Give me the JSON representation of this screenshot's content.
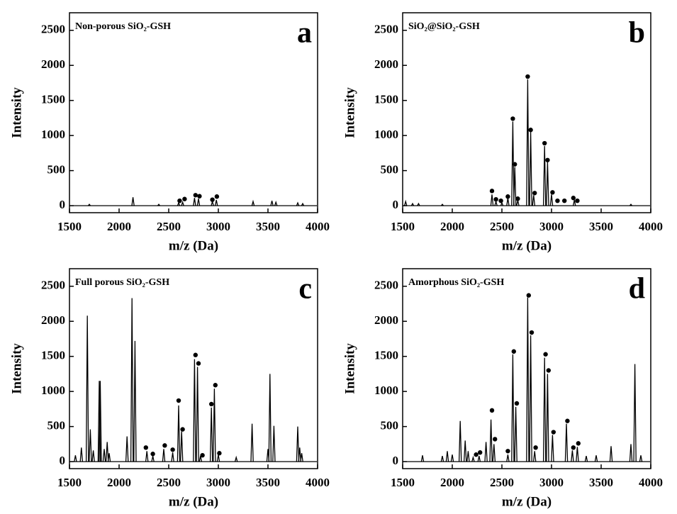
{
  "chart_data": [
    {
      "type": "spectrum",
      "panel_label": "a",
      "title": "Non-porous SiO₂-GSH",
      "x_label": "m/z (Da)",
      "y_label": "Intensity",
      "color": "#000000",
      "xlim": [
        1500,
        4000
      ],
      "ylim": [
        -100,
        2750
      ],
      "xticks": [
        1500,
        2000,
        2500,
        3000,
        3500,
        4000
      ],
      "yticks": [
        0,
        500,
        1000,
        1500,
        2000,
        2500
      ],
      "x": [
        1700,
        2140,
        2400,
        2600,
        2640,
        2760,
        2800,
        2940,
        2980,
        3350,
        3540,
        3580,
        3800,
        3850
      ],
      "values": [
        20,
        120,
        20,
        40,
        50,
        110,
        100,
        60,
        80,
        60,
        70,
        50,
        40,
        30
      ],
      "markers": {
        "x": [
          2610,
          2660,
          2770,
          2810,
          2940,
          2985
        ],
        "values": [
          70,
          95,
          150,
          135,
          85,
          130
        ]
      }
    },
    {
      "type": "spectrum",
      "panel_label": "b",
      "title": "SiO₂@SiO₂-GSH",
      "x_label": "m/z (Da)",
      "y_label": "Intensity",
      "color": "#000000",
      "xlim": [
        1500,
        4000
      ],
      "ylim": [
        -100,
        2750
      ],
      "xticks": [
        1500,
        2000,
        2500,
        3000,
        3500,
        4000
      ],
      "yticks": [
        0,
        500,
        1000,
        1500,
        2000,
        2500
      ],
      "x": [
        1530,
        1600,
        1660,
        1900,
        2400,
        2440,
        2500,
        2560,
        2610,
        2630,
        2660,
        2760,
        2790,
        2820,
        2930,
        2960,
        3000,
        3230,
        3800
      ],
      "values": [
        60,
        30,
        30,
        20,
        160,
        60,
        40,
        110,
        1200,
        550,
        80,
        1800,
        1050,
        150,
        850,
        620,
        160,
        80,
        20
      ],
      "markers": {
        "x": [
          2400,
          2440,
          2490,
          2560,
          2610,
          2630,
          2660,
          2760,
          2790,
          2830,
          2930,
          2960,
          3010,
          3060,
          3130,
          3220,
          3260
        ],
        "values": [
          210,
          90,
          70,
          130,
          1240,
          590,
          100,
          1840,
          1080,
          180,
          890,
          650,
          190,
          70,
          70,
          110,
          70
        ]
      }
    },
    {
      "type": "spectrum",
      "panel_label": "c",
      "title": "Full porous SiO₂-GSH",
      "x_label": "m/z (Da)",
      "y_label": "Intensity",
      "color": "#000000",
      "xlim": [
        1500,
        4000
      ],
      "ylim": [
        -100,
        2750
      ],
      "xticks": [
        1500,
        2000,
        2500,
        3000,
        3500,
        4000
      ],
      "yticks": [
        0,
        500,
        1000,
        1500,
        2000,
        2500
      ],
      "x": [
        1560,
        1620,
        1680,
        1710,
        1740,
        1800,
        1810,
        1850,
        1880,
        1900,
        2080,
        2130,
        2160,
        2280,
        2340,
        2450,
        2540,
        2600,
        2630,
        2760,
        2790,
        2820,
        2930,
        2960,
        3000,
        3180,
        3340,
        3500,
        3520,
        3560,
        3800,
        3820,
        3840
      ],
      "values": [
        90,
        200,
        2080,
        460,
        160,
        1150,
        1150,
        180,
        280,
        120,
        360,
        2330,
        1720,
        150,
        80,
        180,
        130,
        800,
        430,
        1460,
        1350,
        80,
        770,
        1040,
        100,
        60,
        540,
        180,
        1250,
        510,
        500,
        200,
        120
      ],
      "markers": {
        "x": [
          2270,
          2340,
          2460,
          2540,
          2600,
          2640,
          2770,
          2800,
          2840,
          2930,
          2970,
          3010
        ],
        "values": [
          200,
          110,
          230,
          170,
          870,
          460,
          1520,
          1400,
          90,
          820,
          1090,
          120
        ]
      }
    },
    {
      "type": "spectrum",
      "panel_label": "d",
      "title": "Amorphous SiO₂-GSH",
      "x_label": "m/z (Da)",
      "y_label": "Intensity",
      "color": "#000000",
      "xlim": [
        1500,
        4000
      ],
      "ylim": [
        -100,
        2750
      ],
      "xticks": [
        1500,
        2000,
        2500,
        3000,
        3500,
        4000
      ],
      "yticks": [
        0,
        500,
        1000,
        1500,
        2000,
        2500
      ],
      "x": [
        1700,
        1900,
        1950,
        2000,
        2080,
        2130,
        2160,
        2210,
        2270,
        2340,
        2390,
        2420,
        2560,
        2610,
        2640,
        2760,
        2790,
        2830,
        2930,
        2960,
        3010,
        3150,
        3210,
        3260,
        3350,
        3450,
        3600,
        3800,
        3840,
        3900
      ],
      "values": [
        90,
        80,
        150,
        100,
        580,
        300,
        150,
        60,
        80,
        280,
        600,
        250,
        100,
        1530,
        780,
        2340,
        1800,
        150,
        1480,
        1250,
        380,
        540,
        160,
        210,
        80,
        90,
        220,
        250,
        1390,
        90
      ],
      "markers": {
        "x": [
          2240,
          2280,
          2400,
          2430,
          2560,
          2620,
          2650,
          2770,
          2800,
          2840,
          2940,
          2970,
          3020,
          3160,
          3220,
          3270
        ],
        "values": [
          100,
          130,
          730,
          320,
          150,
          1570,
          830,
          2370,
          1840,
          200,
          1530,
          1300,
          420,
          580,
          200,
          260
        ]
      }
    }
  ]
}
